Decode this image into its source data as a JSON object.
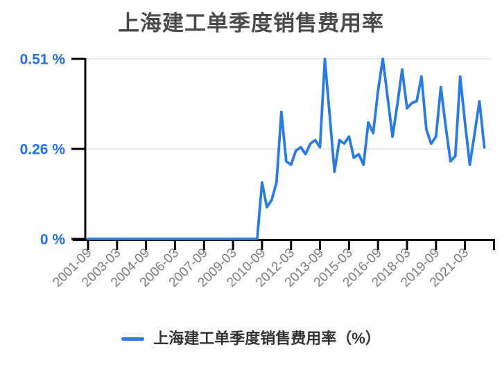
{
  "title": "上海建工单季度销售费用率",
  "legend": {
    "label": "上海建工单季度销售费用率（%）"
  },
  "colors": {
    "line": "#2b7ce1",
    "y_label": "#2172e4",
    "x_label": "#7d7d7d",
    "axis": "#000000",
    "grid": "#e5e5e5",
    "title": "#4a4a4a",
    "legend_text": "#333333",
    "background": "#ffffff"
  },
  "chart_data": {
    "type": "line",
    "title": "上海建工单季度销售费用率",
    "series_name": "上海建工单季度销售费用率（%）",
    "ylabel": "",
    "xlabel": "",
    "ylim": [
      0,
      0.51
    ],
    "grid": "horizontal",
    "legend_position": "bottom",
    "yticks": [
      {
        "value": 0,
        "label": "0 %"
      },
      {
        "value": 0.255,
        "label": "0.26 %"
      },
      {
        "value": 0.51,
        "label": "0.51 %"
      }
    ],
    "xtick_every": 6,
    "xtick_labels": [
      "2001-09",
      "2003-03",
      "2004-09",
      "2006-03",
      "2007-09",
      "2009-03",
      "2010-09",
      "2012-03",
      "2013-09",
      "2015-03",
      "2016-09",
      "2018-03",
      "2019-09",
      "2021-03"
    ],
    "x": [
      "2001-09",
      "2001-12",
      "2002-03",
      "2002-06",
      "2002-09",
      "2002-12",
      "2003-03",
      "2003-06",
      "2003-09",
      "2003-12",
      "2004-03",
      "2004-06",
      "2004-09",
      "2004-12",
      "2005-03",
      "2005-06",
      "2005-09",
      "2005-12",
      "2006-03",
      "2006-06",
      "2006-09",
      "2006-12",
      "2007-03",
      "2007-06",
      "2007-09",
      "2007-12",
      "2008-03",
      "2008-06",
      "2008-09",
      "2008-12",
      "2009-03",
      "2009-06",
      "2009-09",
      "2009-12",
      "2010-03",
      "2010-06",
      "2010-09",
      "2010-12",
      "2011-03",
      "2011-06",
      "2011-09",
      "2011-12",
      "2012-03",
      "2012-06",
      "2012-09",
      "2012-12",
      "2013-03",
      "2013-06",
      "2013-09",
      "2013-12",
      "2014-03",
      "2014-06",
      "2014-09",
      "2014-12",
      "2015-03",
      "2015-06",
      "2015-09",
      "2015-12",
      "2016-03",
      "2016-06",
      "2016-09",
      "2016-12",
      "2017-03",
      "2017-06",
      "2017-09",
      "2017-12",
      "2018-03",
      "2018-06",
      "2018-09",
      "2018-12",
      "2019-03",
      "2019-06",
      "2019-09",
      "2019-12",
      "2020-03",
      "2020-06",
      "2020-09",
      "2020-12",
      "2021-03",
      "2021-06",
      "2021-09",
      "2021-12",
      "2022-03"
    ],
    "values": [
      0,
      0,
      0,
      0,
      0,
      0,
      0,
      0,
      0,
      0,
      0,
      0,
      0,
      0,
      0,
      0,
      0,
      0,
      0,
      0,
      0,
      0,
      0,
      0,
      0,
      0,
      0,
      0,
      0,
      0,
      0,
      0,
      0,
      0,
      0,
      0,
      0.16,
      0.09,
      0.11,
      0.16,
      0.36,
      0.22,
      0.21,
      0.25,
      0.26,
      0.24,
      0.27,
      0.28,
      0.26,
      0.51,
      0.35,
      0.19,
      0.28,
      0.27,
      0.29,
      0.23,
      0.24,
      0.21,
      0.33,
      0.3,
      0.42,
      0.51,
      0.4,
      0.29,
      0.38,
      0.48,
      0.37,
      0.385,
      0.39,
      0.46,
      0.31,
      0.27,
      0.29,
      0.43,
      0.32,
      0.22,
      0.235,
      0.46,
      0.33,
      0.21,
      0.3,
      0.39,
      0.26
    ]
  }
}
